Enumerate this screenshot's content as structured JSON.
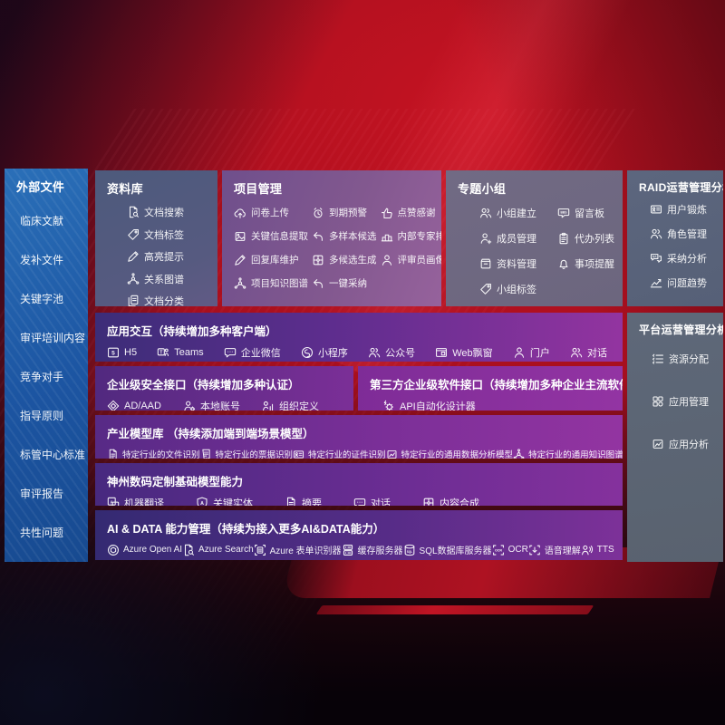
{
  "colors": {
    "background_red": "#b01020",
    "sidebar_blue": "#1f5fa8",
    "panel_slate": "#55617f",
    "panel_mauve": "#6e6880",
    "row_indigo": "#3c2d78",
    "row_magenta": "#9334a0"
  },
  "sidebar": {
    "title": "外部文件",
    "items": [
      {
        "label": "临床文献"
      },
      {
        "label": "发补文件"
      },
      {
        "label": "关键字池"
      },
      {
        "label": "审评培训内容"
      },
      {
        "label": "竞争对手"
      },
      {
        "label": "指导原则"
      },
      {
        "label": "标管中心标准"
      },
      {
        "label": "审评报告"
      },
      {
        "label": "共性问题"
      }
    ]
  },
  "repo": {
    "title": "资料库",
    "items": [
      {
        "icon": "doc-search",
        "label": "文档搜索"
      },
      {
        "icon": "tag",
        "label": "文档标签"
      },
      {
        "icon": "pencil",
        "label": "高亮提示"
      },
      {
        "icon": "graph",
        "label": "关系图谱"
      },
      {
        "icon": "doc-copy",
        "label": "文档分类"
      }
    ]
  },
  "project": {
    "title": "项目管理",
    "items": [
      {
        "icon": "cloud-up",
        "label": "问卷上传"
      },
      {
        "icon": "alarm",
        "label": "到期预警"
      },
      {
        "icon": "thumb",
        "label": "点赞感谢"
      },
      {
        "icon": "image-doc",
        "label": "关键信息提取"
      },
      {
        "icon": "reply",
        "label": "多样本候选"
      },
      {
        "icon": "podium",
        "label": "内部专家排名"
      },
      {
        "icon": "pencil",
        "label": "回复库维护"
      },
      {
        "icon": "puzzle",
        "label": "多候选生成"
      },
      {
        "icon": "person",
        "label": "评审员画像"
      },
      {
        "icon": "graph",
        "label": "项目知识图谱"
      },
      {
        "icon": "reply",
        "label": "一键采纳"
      }
    ]
  },
  "topic": {
    "title": "专题小组",
    "items": [
      {
        "icon": "people",
        "label": "小组建立"
      },
      {
        "icon": "bbs",
        "label": "留言板"
      },
      {
        "icon": "person-add",
        "label": "成员管理"
      },
      {
        "icon": "clipboard",
        "label": "代办列表"
      },
      {
        "icon": "archive",
        "label": "资料管理"
      },
      {
        "icon": "bell",
        "label": "事项提醒"
      },
      {
        "icon": "tag",
        "label": "小组标签"
      }
    ]
  },
  "raid": {
    "title": "RAID运营管理分析",
    "items": [
      {
        "icon": "id-card",
        "label": "用户锻炼"
      },
      {
        "icon": "people",
        "label": "角色管理"
      },
      {
        "icon": "chat-qa",
        "label": "采纳分析"
      },
      {
        "icon": "chart",
        "label": "问题趋势"
      }
    ]
  },
  "platform": {
    "title": "平台运营管理分析",
    "items": [
      {
        "icon": "list",
        "label": "资源分配"
      },
      {
        "icon": "grid",
        "label": "应用管理"
      },
      {
        "icon": "chart-doc",
        "label": "应用分析"
      }
    ]
  },
  "interaction": {
    "title": "应用交互（持续增加多种客户端）",
    "items": [
      {
        "icon": "h5-badge",
        "label": "H5"
      },
      {
        "icon": "teams",
        "label": "Teams"
      },
      {
        "icon": "chat",
        "label": "企业微信"
      },
      {
        "icon": "miniprogram",
        "label": "小程序"
      },
      {
        "icon": "people",
        "label": "公众号"
      },
      {
        "icon": "web-window",
        "label": "Web飘窗"
      },
      {
        "icon": "person",
        "label": "门户"
      },
      {
        "icon": "people",
        "label": "对话"
      }
    ]
  },
  "security": {
    "title": "企业级安全接口（持续增加多种认证）",
    "items": [
      {
        "icon": "diamond",
        "label": "AD/AAD"
      },
      {
        "icon": "person-gear",
        "label": "本地账号"
      },
      {
        "icon": "org",
        "label": "组织定义"
      }
    ]
  },
  "thirdparty": {
    "title": "第三方企业级软件接口（持续增加多种企业主流软件接口）",
    "items": [
      {
        "icon": "api-gear",
        "label": "API自动化设计器"
      }
    ]
  },
  "models": {
    "title": "产业模型库 （持续添加端到端场景模型）",
    "items": [
      {
        "icon": "doc",
        "label": "特定行业的文件识别"
      },
      {
        "icon": "receipt",
        "label": "特定行业的票据识别"
      },
      {
        "icon": "id-card",
        "label": "特定行业的证件识别"
      },
      {
        "icon": "chart-doc",
        "label": "特定行业的通用数据分析模型"
      },
      {
        "icon": "graph",
        "label": "特定行业的通用知识图谱模型"
      }
    ]
  },
  "foundation": {
    "title": "神州数码定制基础模型能力",
    "items": [
      {
        "icon": "translate",
        "label": "机器翻译"
      },
      {
        "icon": "shield-a",
        "label": "关键实体"
      },
      {
        "icon": "doc",
        "label": "摘要"
      },
      {
        "icon": "chat",
        "label": "对话"
      },
      {
        "icon": "puzzle",
        "label": "内容合成"
      }
    ]
  },
  "aidata": {
    "title": "AI & DATA 能力管理（持续为接入更多AI&DATA能力）",
    "items": [
      {
        "icon": "openai",
        "label": "Azure Open AI"
      },
      {
        "icon": "doc-search",
        "label": "Azure Search"
      },
      {
        "icon": "form-scan",
        "label": "Azure 表单识别器"
      },
      {
        "icon": "cache-server",
        "label": "缓存服务器"
      },
      {
        "icon": "sql-db",
        "label": "SQL数据库服务器"
      },
      {
        "icon": "ocr",
        "label": "OCR"
      },
      {
        "icon": "voice",
        "label": "语音理解"
      },
      {
        "icon": "tts",
        "label": "TTS"
      }
    ]
  }
}
